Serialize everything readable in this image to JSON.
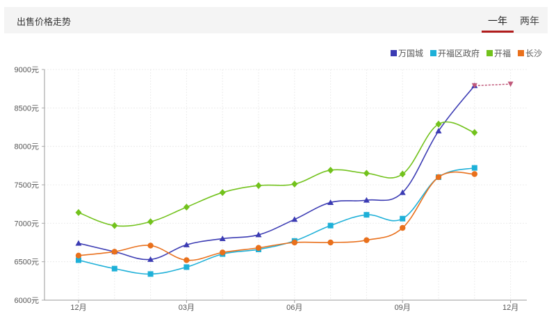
{
  "header": {
    "title": "出售价格走势",
    "tabs": [
      {
        "label": "一年",
        "active": true
      },
      {
        "label": "两年",
        "active": false
      }
    ],
    "active_color": "#b11c1c"
  },
  "chart_data": {
    "type": "line",
    "title": "出售价格走势",
    "x_tick_labels": [
      "12月",
      "03月",
      "06月",
      "09月",
      "12月"
    ],
    "y_tick_labels": [
      "9000元",
      "8500元",
      "8000元",
      "7500元",
      "7000元",
      "6500元",
      "6000元"
    ],
    "ylim": [
      6000,
      9000
    ],
    "y_ticks": [
      9000,
      8500,
      8000,
      7500,
      7000,
      6500,
      6000
    ],
    "grid": true,
    "legend_position": "top-right",
    "series": [
      {
        "name": "万国城",
        "color": "#3b3bb3",
        "marker": "triangle",
        "values": [
          6740,
          6630,
          6530,
          6720,
          6800,
          6850,
          7050,
          7270,
          7300,
          7400,
          8200,
          8790
        ]
      },
      {
        "name": "开福区政府",
        "color": "#1eb0d8",
        "marker": "square",
        "values": [
          6520,
          6410,
          6340,
          6430,
          6600,
          6660,
          6770,
          6970,
          7110,
          7060,
          7600,
          7720
        ]
      },
      {
        "name": "开福",
        "color": "#72c21c",
        "marker": "diamond",
        "values": [
          7140,
          6970,
          7020,
          7210,
          7400,
          7490,
          7510,
          7690,
          7650,
          7640,
          8290,
          8180
        ]
      },
      {
        "name": "长沙",
        "color": "#e9701c",
        "marker": "circle",
        "values": [
          6580,
          6630,
          6710,
          6520,
          6620,
          6680,
          6750,
          6750,
          6780,
          6940,
          7600,
          7640
        ]
      }
    ],
    "forecast": {
      "color": "#c0587a",
      "values": [
        8790,
        8810
      ]
    }
  }
}
